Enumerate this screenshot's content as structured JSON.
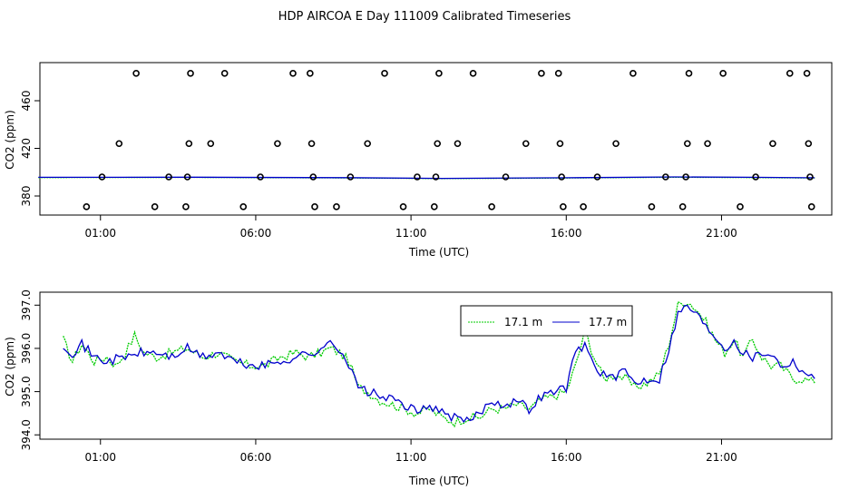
{
  "title": "HDP AIRCOA E  Day 111009  Calibrated Timeseries",
  "chart_data": [
    {
      "type": "scatter",
      "xlabel": "Time (UTC)",
      "ylabel": "CO2 (ppm)",
      "x_ticks": [
        "01:00",
        "06:00",
        "11:00",
        "16:00",
        "21:00"
      ],
      "x_tick_hours": [
        1,
        6,
        11,
        16,
        21
      ],
      "y_ticks": [
        380,
        420,
        460
      ],
      "xlim": [
        -0.95,
        24.55
      ],
      "ylim": [
        364,
        492
      ],
      "points": [
        [
          0.55,
          371
        ],
        [
          1.05,
          396
        ],
        [
          1.6,
          424
        ],
        [
          2.15,
          483
        ],
        [
          2.75,
          371
        ],
        [
          3.2,
          396
        ],
        [
          3.75,
          371
        ],
        [
          3.8,
          396
        ],
        [
          3.85,
          424
        ],
        [
          3.9,
          483
        ],
        [
          4.55,
          424
        ],
        [
          5.0,
          483
        ],
        [
          5.6,
          371
        ],
        [
          6.15,
          396
        ],
        [
          6.7,
          424
        ],
        [
          7.2,
          483
        ],
        [
          7.75,
          483
        ],
        [
          7.8,
          424
        ],
        [
          7.85,
          396
        ],
        [
          7.9,
          371
        ],
        [
          8.6,
          371
        ],
        [
          9.05,
          396
        ],
        [
          9.6,
          424
        ],
        [
          10.15,
          483
        ],
        [
          10.75,
          371
        ],
        [
          11.2,
          396
        ],
        [
          11.75,
          371
        ],
        [
          11.8,
          396
        ],
        [
          11.85,
          424
        ],
        [
          11.9,
          483
        ],
        [
          12.5,
          424
        ],
        [
          13.0,
          483
        ],
        [
          13.6,
          371
        ],
        [
          14.05,
          396
        ],
        [
          14.7,
          424
        ],
        [
          15.2,
          483
        ],
        [
          15.75,
          483
        ],
        [
          15.8,
          424
        ],
        [
          15.85,
          396
        ],
        [
          15.9,
          371
        ],
        [
          16.55,
          371
        ],
        [
          17.0,
          396
        ],
        [
          17.6,
          424
        ],
        [
          18.15,
          483
        ],
        [
          18.75,
          371
        ],
        [
          19.2,
          396
        ],
        [
          19.75,
          371
        ],
        [
          19.85,
          396
        ],
        [
          19.9,
          424
        ],
        [
          19.95,
          483
        ],
        [
          20.55,
          424
        ],
        [
          21.05,
          483
        ],
        [
          21.6,
          371
        ],
        [
          22.1,
          396
        ],
        [
          22.65,
          424
        ],
        [
          23.2,
          483
        ],
        [
          23.75,
          483
        ],
        [
          23.8,
          424
        ],
        [
          23.85,
          396
        ],
        [
          23.9,
          371
        ]
      ],
      "line_17_1": [
        [
          -1.0,
          395.5
        ],
        [
          4.0,
          395.6
        ],
        [
          9.0,
          395.2
        ],
        [
          12.0,
          394.6
        ],
        [
          16.0,
          395.1
        ],
        [
          19.5,
          395.8
        ],
        [
          22.0,
          395.5
        ],
        [
          24.0,
          395.1
        ]
      ],
      "line_17_7": [
        [
          -1.0,
          395.7
        ],
        [
          4.0,
          395.8
        ],
        [
          9.0,
          395.4
        ],
        [
          12.0,
          394.8
        ],
        [
          16.0,
          395.3
        ],
        [
          19.5,
          396.0
        ],
        [
          22.0,
          395.7
        ],
        [
          24.0,
          395.3
        ]
      ]
    },
    {
      "type": "line",
      "xlabel": "Time (UTC)",
      "ylabel": "CO2 (ppm)",
      "x_ticks": [
        "01:00",
        "06:00",
        "11:00",
        "16:00",
        "21:00"
      ],
      "x_tick_hours": [
        1,
        6,
        11,
        16,
        21
      ],
      "y_ticks": [
        "394.0",
        "395.0",
        "396.0",
        "397.0"
      ],
      "y_tick_values": [
        394.0,
        395.0,
        396.0,
        397.0
      ],
      "xlim": [
        -0.95,
        24.55
      ],
      "ylim": [
        393.9,
        397.3
      ],
      "legend_position": "top-right",
      "series": [
        {
          "name": "17.1 m",
          "color": "#00cc00",
          "dashed": true
        },
        {
          "name": "17.7 m",
          "color": "#0000cc",
          "dashed": false
        }
      ],
      "anchors_17_7": [
        [
          -0.2,
          396.1
        ],
        [
          0.1,
          395.9
        ],
        [
          0.4,
          396.1
        ],
        [
          0.8,
          395.8
        ],
        [
          1.2,
          395.7
        ],
        [
          1.8,
          395.8
        ],
        [
          2.3,
          395.9
        ],
        [
          2.8,
          395.9
        ],
        [
          3.3,
          395.8
        ],
        [
          3.8,
          396.0
        ],
        [
          4.3,
          395.8
        ],
        [
          4.8,
          395.9
        ],
        [
          5.3,
          395.7
        ],
        [
          5.8,
          395.6
        ],
        [
          6.3,
          395.6
        ],
        [
          6.8,
          395.7
        ],
        [
          7.3,
          395.8
        ],
        [
          7.7,
          395.9
        ],
        [
          8.1,
          395.9
        ],
        [
          8.4,
          396.2
        ],
        [
          8.7,
          396.0
        ],
        [
          9.0,
          395.6
        ],
        [
          9.3,
          395.1
        ],
        [
          9.6,
          395.0
        ],
        [
          10.0,
          394.9
        ],
        [
          10.4,
          394.8
        ],
        [
          10.8,
          394.7
        ],
        [
          11.2,
          394.5
        ],
        [
          11.6,
          394.7
        ],
        [
          12.0,
          394.5
        ],
        [
          12.4,
          394.4
        ],
        [
          12.8,
          394.3
        ],
        [
          13.2,
          394.5
        ],
        [
          13.6,
          394.8
        ],
        [
          14.0,
          394.7
        ],
        [
          14.4,
          394.8
        ],
        [
          14.8,
          394.6
        ],
        [
          15.2,
          394.9
        ],
        [
          15.6,
          395.0
        ],
        [
          16.0,
          395.1
        ],
        [
          16.3,
          395.9
        ],
        [
          16.6,
          396.1
        ],
        [
          16.9,
          395.6
        ],
        [
          17.2,
          395.4
        ],
        [
          17.6,
          395.3
        ],
        [
          17.9,
          395.5
        ],
        [
          18.2,
          395.2
        ],
        [
          18.6,
          395.3
        ],
        [
          19.0,
          395.3
        ],
        [
          19.3,
          396.0
        ],
        [
          19.6,
          396.8
        ],
        [
          19.9,
          397.0
        ],
        [
          20.2,
          396.8
        ],
        [
          20.5,
          396.5
        ],
        [
          20.8,
          396.3
        ],
        [
          21.1,
          396.0
        ],
        [
          21.4,
          396.2
        ],
        [
          21.7,
          395.9
        ],
        [
          22.0,
          395.8
        ],
        [
          22.3,
          395.9
        ],
        [
          22.6,
          395.9
        ],
        [
          22.9,
          395.6
        ],
        [
          23.3,
          395.7
        ],
        [
          23.6,
          395.5
        ],
        [
          24.0,
          395.3
        ]
      ],
      "anchors_17_1": [
        [
          -0.2,
          396.2
        ],
        [
          0.1,
          395.7
        ],
        [
          0.4,
          396.1
        ],
        [
          0.8,
          395.7
        ],
        [
          1.2,
          395.8
        ],
        [
          1.5,
          395.6
        ],
        [
          1.8,
          395.9
        ],
        [
          2.1,
          396.3
        ],
        [
          2.4,
          395.9
        ],
        [
          2.8,
          395.8
        ],
        [
          3.3,
          395.9
        ],
        [
          3.8,
          396.0
        ],
        [
          4.3,
          395.8
        ],
        [
          4.8,
          395.9
        ],
        [
          5.3,
          395.7
        ],
        [
          5.8,
          395.6
        ],
        [
          6.3,
          395.6
        ],
        [
          6.8,
          395.8
        ],
        [
          7.3,
          395.9
        ],
        [
          7.7,
          395.8
        ],
        [
          8.1,
          395.9
        ],
        [
          8.4,
          396.0
        ],
        [
          8.7,
          395.9
        ],
        [
          9.0,
          395.7
        ],
        [
          9.3,
          395.1
        ],
        [
          9.6,
          395.0
        ],
        [
          10.0,
          394.8
        ],
        [
          10.4,
          394.7
        ],
        [
          10.8,
          394.6
        ],
        [
          11.2,
          394.5
        ],
        [
          11.6,
          394.6
        ],
        [
          12.0,
          394.4
        ],
        [
          12.4,
          394.3
        ],
        [
          12.8,
          394.4
        ],
        [
          13.2,
          394.4
        ],
        [
          13.6,
          394.6
        ],
        [
          14.0,
          394.6
        ],
        [
          14.4,
          394.7
        ],
        [
          14.8,
          394.6
        ],
        [
          15.2,
          394.8
        ],
        [
          15.6,
          394.9
        ],
        [
          16.0,
          395.0
        ],
        [
          16.3,
          395.6
        ],
        [
          16.6,
          396.4
        ],
        [
          16.9,
          395.8
        ],
        [
          17.2,
          395.3
        ],
        [
          17.6,
          395.4
        ],
        [
          17.9,
          395.3
        ],
        [
          18.2,
          395.1
        ],
        [
          18.6,
          395.2
        ],
        [
          19.0,
          395.4
        ],
        [
          19.3,
          396.1
        ],
        [
          19.6,
          397.0
        ],
        [
          19.9,
          397.1
        ],
        [
          20.2,
          396.9
        ],
        [
          20.5,
          396.6
        ],
        [
          20.8,
          396.2
        ],
        [
          21.1,
          395.9
        ],
        [
          21.4,
          396.2
        ],
        [
          21.7,
          395.8
        ],
        [
          22.0,
          396.2
        ],
        [
          22.3,
          395.8
        ],
        [
          22.6,
          395.6
        ],
        [
          22.9,
          395.6
        ],
        [
          23.3,
          395.3
        ],
        [
          23.6,
          395.3
        ],
        [
          24.0,
          395.2
        ]
      ]
    }
  ]
}
